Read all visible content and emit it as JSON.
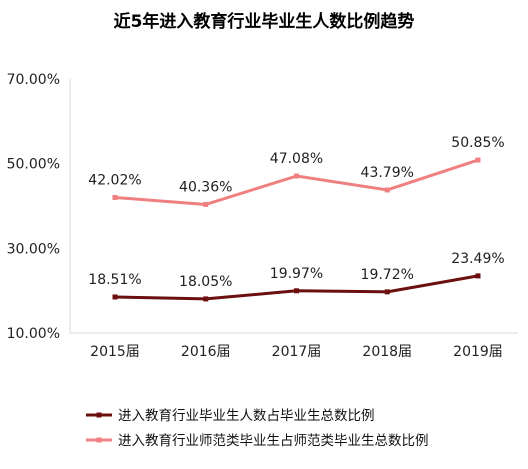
{
  "chart_data": {
    "type": "line",
    "title": "近5年进入教育行业毕业生人数比例趋势",
    "categories": [
      "2015届",
      "2016届",
      "2017届",
      "2018届",
      "2019届"
    ],
    "ylim": [
      10,
      70
    ],
    "yticks": [
      10,
      30,
      50,
      70
    ],
    "ytick_labels": [
      "10.00%",
      "30.00%",
      "50.00%",
      "70.00%"
    ],
    "grid": false,
    "legend_position": "bottom",
    "series": [
      {
        "name": "进入教育行业毕业生人数占毕业生总数比例",
        "values": [
          18.51,
          18.05,
          19.97,
          19.72,
          23.49
        ],
        "labels": [
          "18.51%",
          "18.05%",
          "19.97%",
          "19.72%",
          "23.49%"
        ],
        "color": "#6b0f0f"
      },
      {
        "name": "进入教育行业师范类毕业生占师范类毕业生总数比例",
        "values": [
          42.02,
          40.36,
          47.08,
          43.79,
          50.85
        ],
        "labels": [
          "42.02%",
          "40.36%",
          "47.08%",
          "43.79%",
          "50.85%"
        ],
        "color": "#f08080"
      }
    ]
  }
}
